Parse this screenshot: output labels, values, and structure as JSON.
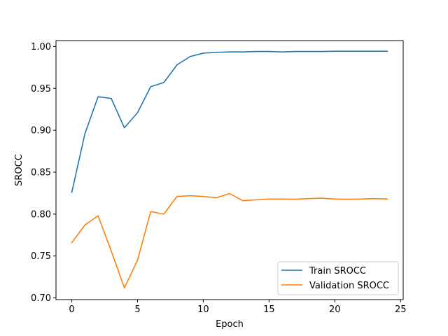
{
  "chart_data": {
    "type": "line",
    "xlabel": "Epoch",
    "ylabel": "SROCC",
    "xlim": [
      -1.2,
      25.2
    ],
    "ylim": [
      0.698,
      1.007
    ],
    "xticks": [
      0,
      5,
      10,
      15,
      20,
      25
    ],
    "xtick_labels": [
      "0",
      "5",
      "10",
      "15",
      "20",
      "25"
    ],
    "yticks": [
      0.7,
      0.75,
      0.8,
      0.85,
      0.9,
      0.95,
      1.0
    ],
    "ytick_labels": [
      "0.70",
      "0.75",
      "0.80",
      "0.85",
      "0.90",
      "0.95",
      "1.00"
    ],
    "grid": false,
    "legend_position": "bottom-right",
    "x": [
      0,
      1,
      2,
      3,
      4,
      5,
      6,
      7,
      8,
      9,
      10,
      11,
      12,
      13,
      14,
      15,
      16,
      17,
      18,
      19,
      20,
      21,
      22,
      23,
      24
    ],
    "series": [
      {
        "name": "Train SROCC",
        "color": "#1f77b4",
        "values": [
          0.826,
          0.896,
          0.94,
          0.938,
          0.903,
          0.921,
          0.952,
          0.957,
          0.978,
          0.988,
          0.992,
          0.993,
          0.9935,
          0.9935,
          0.994,
          0.994,
          0.9935,
          0.994,
          0.994,
          0.994,
          0.9943,
          0.9943,
          0.9943,
          0.9943,
          0.9943
        ]
      },
      {
        "name": "Validation SROCC",
        "color": "#ff7f0e",
        "values": [
          0.766,
          0.787,
          0.798,
          0.756,
          0.712,
          0.745,
          0.803,
          0.8,
          0.821,
          0.822,
          0.821,
          0.8195,
          0.8245,
          0.816,
          0.817,
          0.818,
          0.818,
          0.8178,
          0.8185,
          0.819,
          0.818,
          0.8178,
          0.818,
          0.8185,
          0.818
        ]
      }
    ]
  }
}
